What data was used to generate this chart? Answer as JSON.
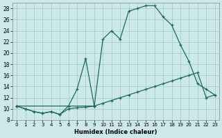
{
  "xlabel": "Humidex (Indice chaleur)",
  "bg_color": "#cce8e8",
  "grid_color": "#a0c8c8",
  "line_color": "#1a6b5a",
  "xlim": [
    -0.5,
    23.5
  ],
  "ylim": [
    8,
    29
  ],
  "xticks": [
    0,
    1,
    2,
    3,
    4,
    5,
    6,
    7,
    8,
    9,
    10,
    11,
    12,
    13,
    14,
    15,
    16,
    17,
    18,
    19,
    20,
    21,
    22,
    23
  ],
  "yticks": [
    8,
    10,
    12,
    14,
    16,
    18,
    20,
    22,
    24,
    26,
    28
  ],
  "line1_x": [
    0,
    1,
    2,
    3,
    4,
    5,
    6,
    7,
    8,
    9
  ],
  "line1_y": [
    10.5,
    10.0,
    9.5,
    9.2,
    9.5,
    9.0,
    10.5,
    13.5,
    19.0,
    10.5
  ],
  "line2_x": [
    0,
    1,
    2,
    3,
    4,
    5,
    6,
    7,
    8,
    9,
    10,
    11,
    12,
    13,
    14,
    15,
    16,
    17,
    18,
    19,
    20,
    21,
    22,
    23
  ],
  "line2_y": [
    10.5,
    10.0,
    9.5,
    9.2,
    9.5,
    9.0,
    10.0,
    10.2,
    10.3,
    10.5,
    11.0,
    11.5,
    12.0,
    12.5,
    13.0,
    13.5,
    14.0,
    14.5,
    15.0,
    15.5,
    16.0,
    16.5,
    12.0,
    12.5
  ],
  "line3_x": [
    0,
    9,
    10,
    11,
    12,
    13,
    14,
    15,
    16,
    17,
    18,
    19,
    20,
    21,
    22,
    23
  ],
  "line3_y": [
    10.5,
    10.5,
    22.5,
    24.0,
    22.5,
    27.5,
    28.0,
    28.5,
    28.5,
    26.5,
    25.0,
    21.5,
    18.5,
    14.5,
    13.5,
    12.5
  ]
}
